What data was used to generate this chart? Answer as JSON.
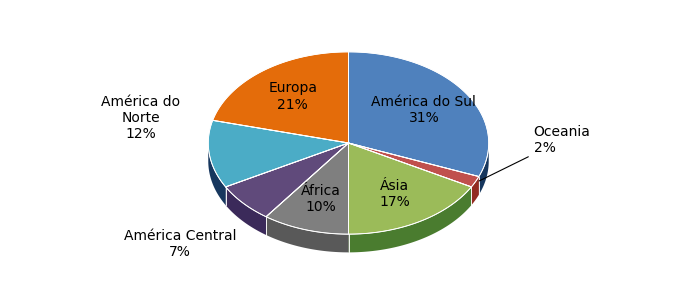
{
  "labels": [
    "América do Sul",
    "Oceania",
    "Ásia",
    "África",
    "América Central",
    "América do Norte",
    "Europa"
  ],
  "values": [
    31,
    2,
    17,
    10,
    7,
    12,
    21
  ],
  "colors_top": [
    "#4F81BD",
    "#C0504D",
    "#9BBB59",
    "#7F7F7F",
    "#604A7B",
    "#4BACC6",
    "#E46C0A"
  ],
  "colors_side": [
    "#17375E",
    "#922B21",
    "#4A7C2F",
    "#595959",
    "#3B2A5A",
    "#17375E",
    "#7E3800"
  ],
  "background": "#FFFFFF",
  "label_fontsize": 10,
  "startangle": 90,
  "slice_order": [
    "América do Sul",
    "Oceania",
    "Ásia",
    "África",
    "América Central",
    "América do Norte",
    "Europa"
  ]
}
